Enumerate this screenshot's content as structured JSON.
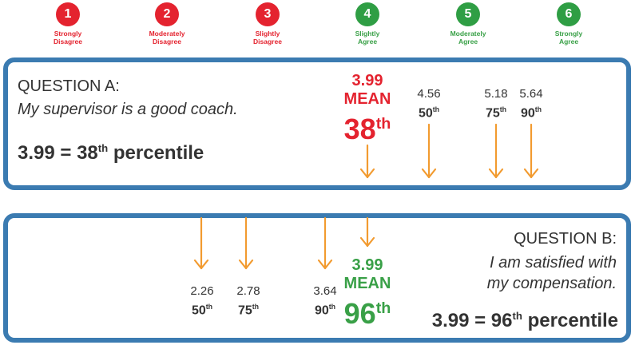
{
  "scale": [
    {
      "number": "1",
      "label_line1": "Strongly",
      "label_line2": "Disagree",
      "color": "#e4232f"
    },
    {
      "number": "2",
      "label_line1": "Moderately",
      "label_line2": "Disagree",
      "color": "#e4232f"
    },
    {
      "number": "3",
      "label_line1": "Slightly",
      "label_line2": "Disagree",
      "color": "#e4232f"
    },
    {
      "number": "4",
      "label_line1": "Slightly",
      "label_line2": "Agree",
      "color": "#2f9e44"
    },
    {
      "number": "5",
      "label_line1": "Moderately",
      "label_line2": "Agree",
      "color": "#2f9e44"
    },
    {
      "number": "6",
      "label_line1": "Strongly",
      "label_line2": "Agree",
      "color": "#2f9e44"
    }
  ],
  "question_a": {
    "heading": "QUESTION A:",
    "text": "My supervisor is a good coach.",
    "result_prefix": "3.99 = 38",
    "result_sup": "th",
    "result_suffix": " percentile",
    "mean": {
      "value": "3.99",
      "label": "MEAN",
      "percentile": "38",
      "sup": "th",
      "color": "#e4232f"
    },
    "marks": [
      {
        "value": "4.56",
        "percentile": "50",
        "sup": "th"
      },
      {
        "value": "5.18",
        "percentile": "75",
        "sup": "th"
      },
      {
        "value": "5.64",
        "percentile": "90",
        "sup": "th"
      }
    ]
  },
  "question_b": {
    "heading": "QUESTION B:",
    "text_line1": "I am satisfied with",
    "text_line2": "my compensation.",
    "result_prefix": "3.99 = 96",
    "result_sup": "th",
    "result_suffix": " percentile",
    "mean": {
      "value": "3.99",
      "label": "MEAN",
      "percentile": "96",
      "sup": "th",
      "color": "#39a047"
    },
    "marks": [
      {
        "value": "2.26",
        "percentile": "50",
        "sup": "th"
      },
      {
        "value": "2.78",
        "percentile": "75",
        "sup": "th"
      },
      {
        "value": "3.64",
        "percentile": "90",
        "sup": "th"
      }
    ]
  },
  "colors": {
    "frame": "#3b7bb1",
    "arrow": "#f29b30",
    "text": "#333333"
  }
}
